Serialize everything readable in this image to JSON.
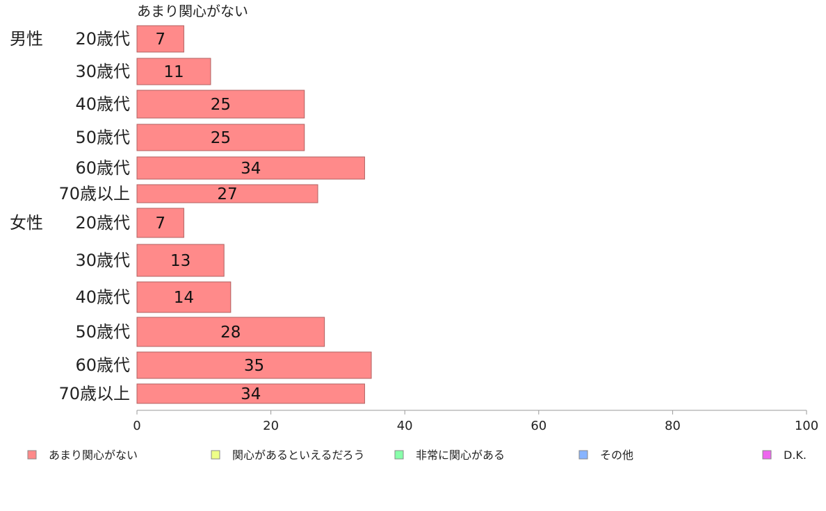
{
  "chart_data": {
    "type": "bar",
    "orientation": "horizontal",
    "stacked": true,
    "series_label_top": "あまり関心がない",
    "groups": [
      {
        "name": "男性",
        "categories": [
          "20歳代",
          "30歳代",
          "40歳代",
          "50歳代",
          "60歳代",
          "70歳以上"
        ]
      },
      {
        "name": "女性",
        "categories": [
          "20歳代",
          "30歳代",
          "40歳代",
          "50歳代",
          "60歳代",
          "70歳以上"
        ]
      }
    ],
    "series": [
      {
        "name": "あまり関心がない",
        "color": "#ff8a8a",
        "values": [
          7,
          11,
          25,
          25,
          34,
          27,
          7,
          13,
          14,
          28,
          35,
          34
        ]
      }
    ],
    "xlim": [
      0,
      100
    ],
    "xticks": [
      0,
      20,
      40,
      60,
      80,
      100
    ],
    "legend": {
      "position": "bottom",
      "items": [
        {
          "label": "あまり関心がない",
          "color": "#ff8a8a"
        },
        {
          "label": "関心があるといえるだろう",
          "color": "#eeff88"
        },
        {
          "label": "非常に関心がある",
          "color": "#88ffaa"
        },
        {
          "label": "その他",
          "color": "#88b4ff"
        },
        {
          "label": "D.K.",
          "color": "#ee66ee"
        }
      ]
    },
    "grid": false
  }
}
